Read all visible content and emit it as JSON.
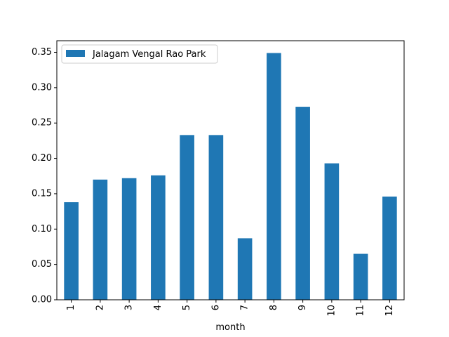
{
  "chart_data": {
    "type": "bar",
    "categories": [
      "1",
      "2",
      "3",
      "4",
      "5",
      "6",
      "7",
      "8",
      "9",
      "10",
      "11",
      "12"
    ],
    "series": [
      {
        "name": "Jalagam Vengal Rao Park",
        "values": [
          0.138,
          0.17,
          0.172,
          0.176,
          0.233,
          0.233,
          0.087,
          0.349,
          0.273,
          0.193,
          0.065,
          0.146
        ],
        "color": "#1f77b4"
      }
    ],
    "xlabel": "month",
    "ylabel": "",
    "ylim": [
      0,
      0.3664
    ],
    "yticks": [
      "0.00",
      "0.05",
      "0.10",
      "0.15",
      "0.20",
      "0.25",
      "0.30",
      "0.35"
    ],
    "legend_placement": "top-left",
    "grid": false
  }
}
